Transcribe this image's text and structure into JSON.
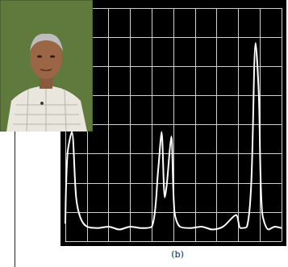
{
  "chart_data": {
    "type": "line",
    "x": [
      0.0,
      0.1,
      0.3,
      0.5,
      0.7,
      1.0,
      1.5,
      2.0,
      2.5,
      3.0,
      3.5,
      4.0,
      4.3,
      4.45,
      4.6,
      4.7,
      4.9,
      5.05,
      5.3,
      5.8,
      6.3,
      6.8,
      7.3,
      7.9,
      8.1,
      8.4,
      8.6,
      8.8,
      8.95,
      9.1,
      9.4,
      9.7,
      10.0
    ],
    "values": [
      0.6,
      3.0,
      3.75,
      1.5,
      0.8,
      0.5,
      0.45,
      0.5,
      0.4,
      0.5,
      0.45,
      0.5,
      2.5,
      3.75,
      1.5,
      2.0,
      3.6,
      1.0,
      0.5,
      0.45,
      0.5,
      0.4,
      0.5,
      0.9,
      0.45,
      0.5,
      2.0,
      6.8,
      5.0,
      1.0,
      0.4,
      0.5,
      0.45
    ],
    "color": "#ffffff",
    "xlim": [
      0,
      10
    ],
    "ylim": [
      0,
      8
    ],
    "xticks": [
      0,
      1,
      2,
      3,
      4,
      5,
      6,
      7,
      8,
      9,
      10
    ],
    "yticks": [
      0,
      1,
      2,
      3,
      4,
      5,
      6,
      7,
      8
    ],
    "grid": true,
    "tick_labels": false
  },
  "caption": "(b)"
}
